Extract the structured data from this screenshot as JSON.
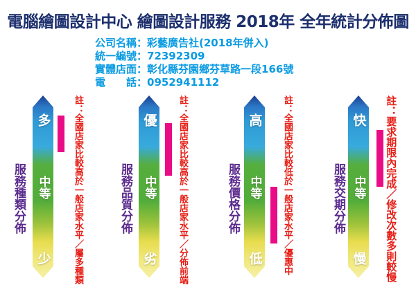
{
  "title": "電腦繪圖設計中心 繪圖設計服務 2018年 全年統計分佈圖",
  "company_info": {
    "lines": [
      "公司名稱：彩藝廣告社(2018年併入)",
      "統一編號：72392309",
      "實體店面：彰化縣芬園鄉芬草路一段166號",
      "電　　話：0952941112"
    ]
  },
  "colors": {
    "title_navy": "#1c2f6d",
    "info_blue": "#0a9be2",
    "axis_purple": "#5b2b8e",
    "note_red": "#e61d15",
    "marker_pink": "#e90c86",
    "scale_gradient": [
      {
        "color": "#1d3f8e",
        "pos": "0%"
      },
      {
        "color": "#2b77c5",
        "pos": "6%"
      },
      {
        "color": "#2f9ad5",
        "pos": "14%"
      },
      {
        "color": "#38aadc",
        "pos": "28%"
      },
      {
        "color": "#55ae3d",
        "pos": "38%"
      },
      {
        "color": "#53ad3a",
        "pos": "58%"
      },
      {
        "color": "#9cc23b",
        "pos": "70%"
      },
      {
        "color": "#e8dc4e",
        "pos": "80%"
      },
      {
        "color": "#f0e87e",
        "pos": "90%"
      },
      {
        "color": "#f6f0a6",
        "pos": "100%"
      }
    ]
  },
  "chart_data": {
    "type": "bar",
    "title": "電腦繪圖設計中心 繪圖設計服務 2018年 全年統計分佈圖",
    "subtitle": "公司名稱：彩藝廣告社(2018年併入)",
    "grid": false,
    "legend_position": "none",
    "orientation": "four vertical gradient rating scales with magenta range markers",
    "scales": [
      {
        "category_label": "服務種類分佈",
        "top_label": "多",
        "mid_label": "中等",
        "bottom_label": "少",
        "marker_range_pct_from_top": [
          11,
          31
        ],
        "note": "註：全國店家比較高於一般店家水平／屬多種類"
      },
      {
        "category_label": "服務品質分佈",
        "top_label": "優",
        "mid_label": "中等",
        "bottom_label": "劣",
        "marker_range_pct_from_top": [
          15,
          44
        ],
        "note": "註：全國店家比較高於一般店家水平／分佈前端"
      },
      {
        "category_label": "服務價格分佈",
        "top_label": "高",
        "mid_label": "中等",
        "bottom_label": "低",
        "marker_range_pct_from_top": [
          50,
          81
        ],
        "note": "註：全國店家比較低於一般店家水平／優惠中"
      },
      {
        "category_label": "服務交期分佈",
        "top_label": "快",
        "mid_label": "中等",
        "bottom_label": "慢",
        "marker_range_pct_from_top": [
          19,
          50
        ],
        "note": "註：要求期限內完成／修改次數多則較慢"
      }
    ]
  }
}
